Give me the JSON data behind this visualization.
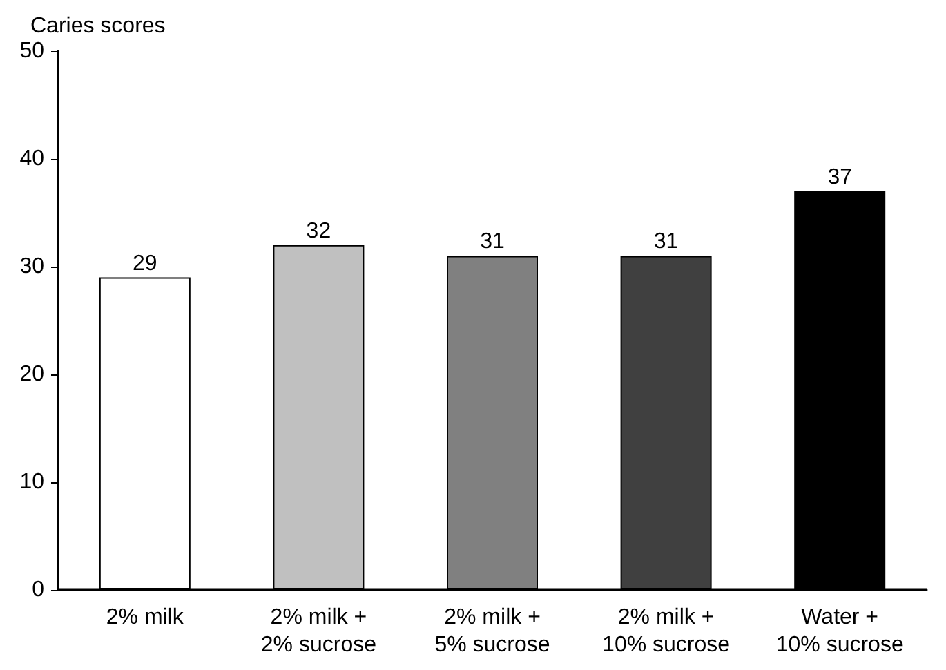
{
  "chart_data": {
    "type": "bar",
    "ylabel": "Caries scores",
    "categories": [
      "2% milk",
      "2% milk +\n2% sucrose",
      "2% milk +\n5% sucrose",
      "2% milk +\n10% sucrose",
      "Water +\n10% sucrose"
    ],
    "values": [
      29,
      32,
      31,
      31,
      37
    ],
    "colors": [
      "#ffffff",
      "#c0c0c0",
      "#808080",
      "#404040",
      "#000000"
    ],
    "ylim": [
      0,
      50
    ],
    "yticks": [
      0,
      10,
      20,
      30,
      40,
      50
    ],
    "grid": false,
    "data_labels": true
  }
}
